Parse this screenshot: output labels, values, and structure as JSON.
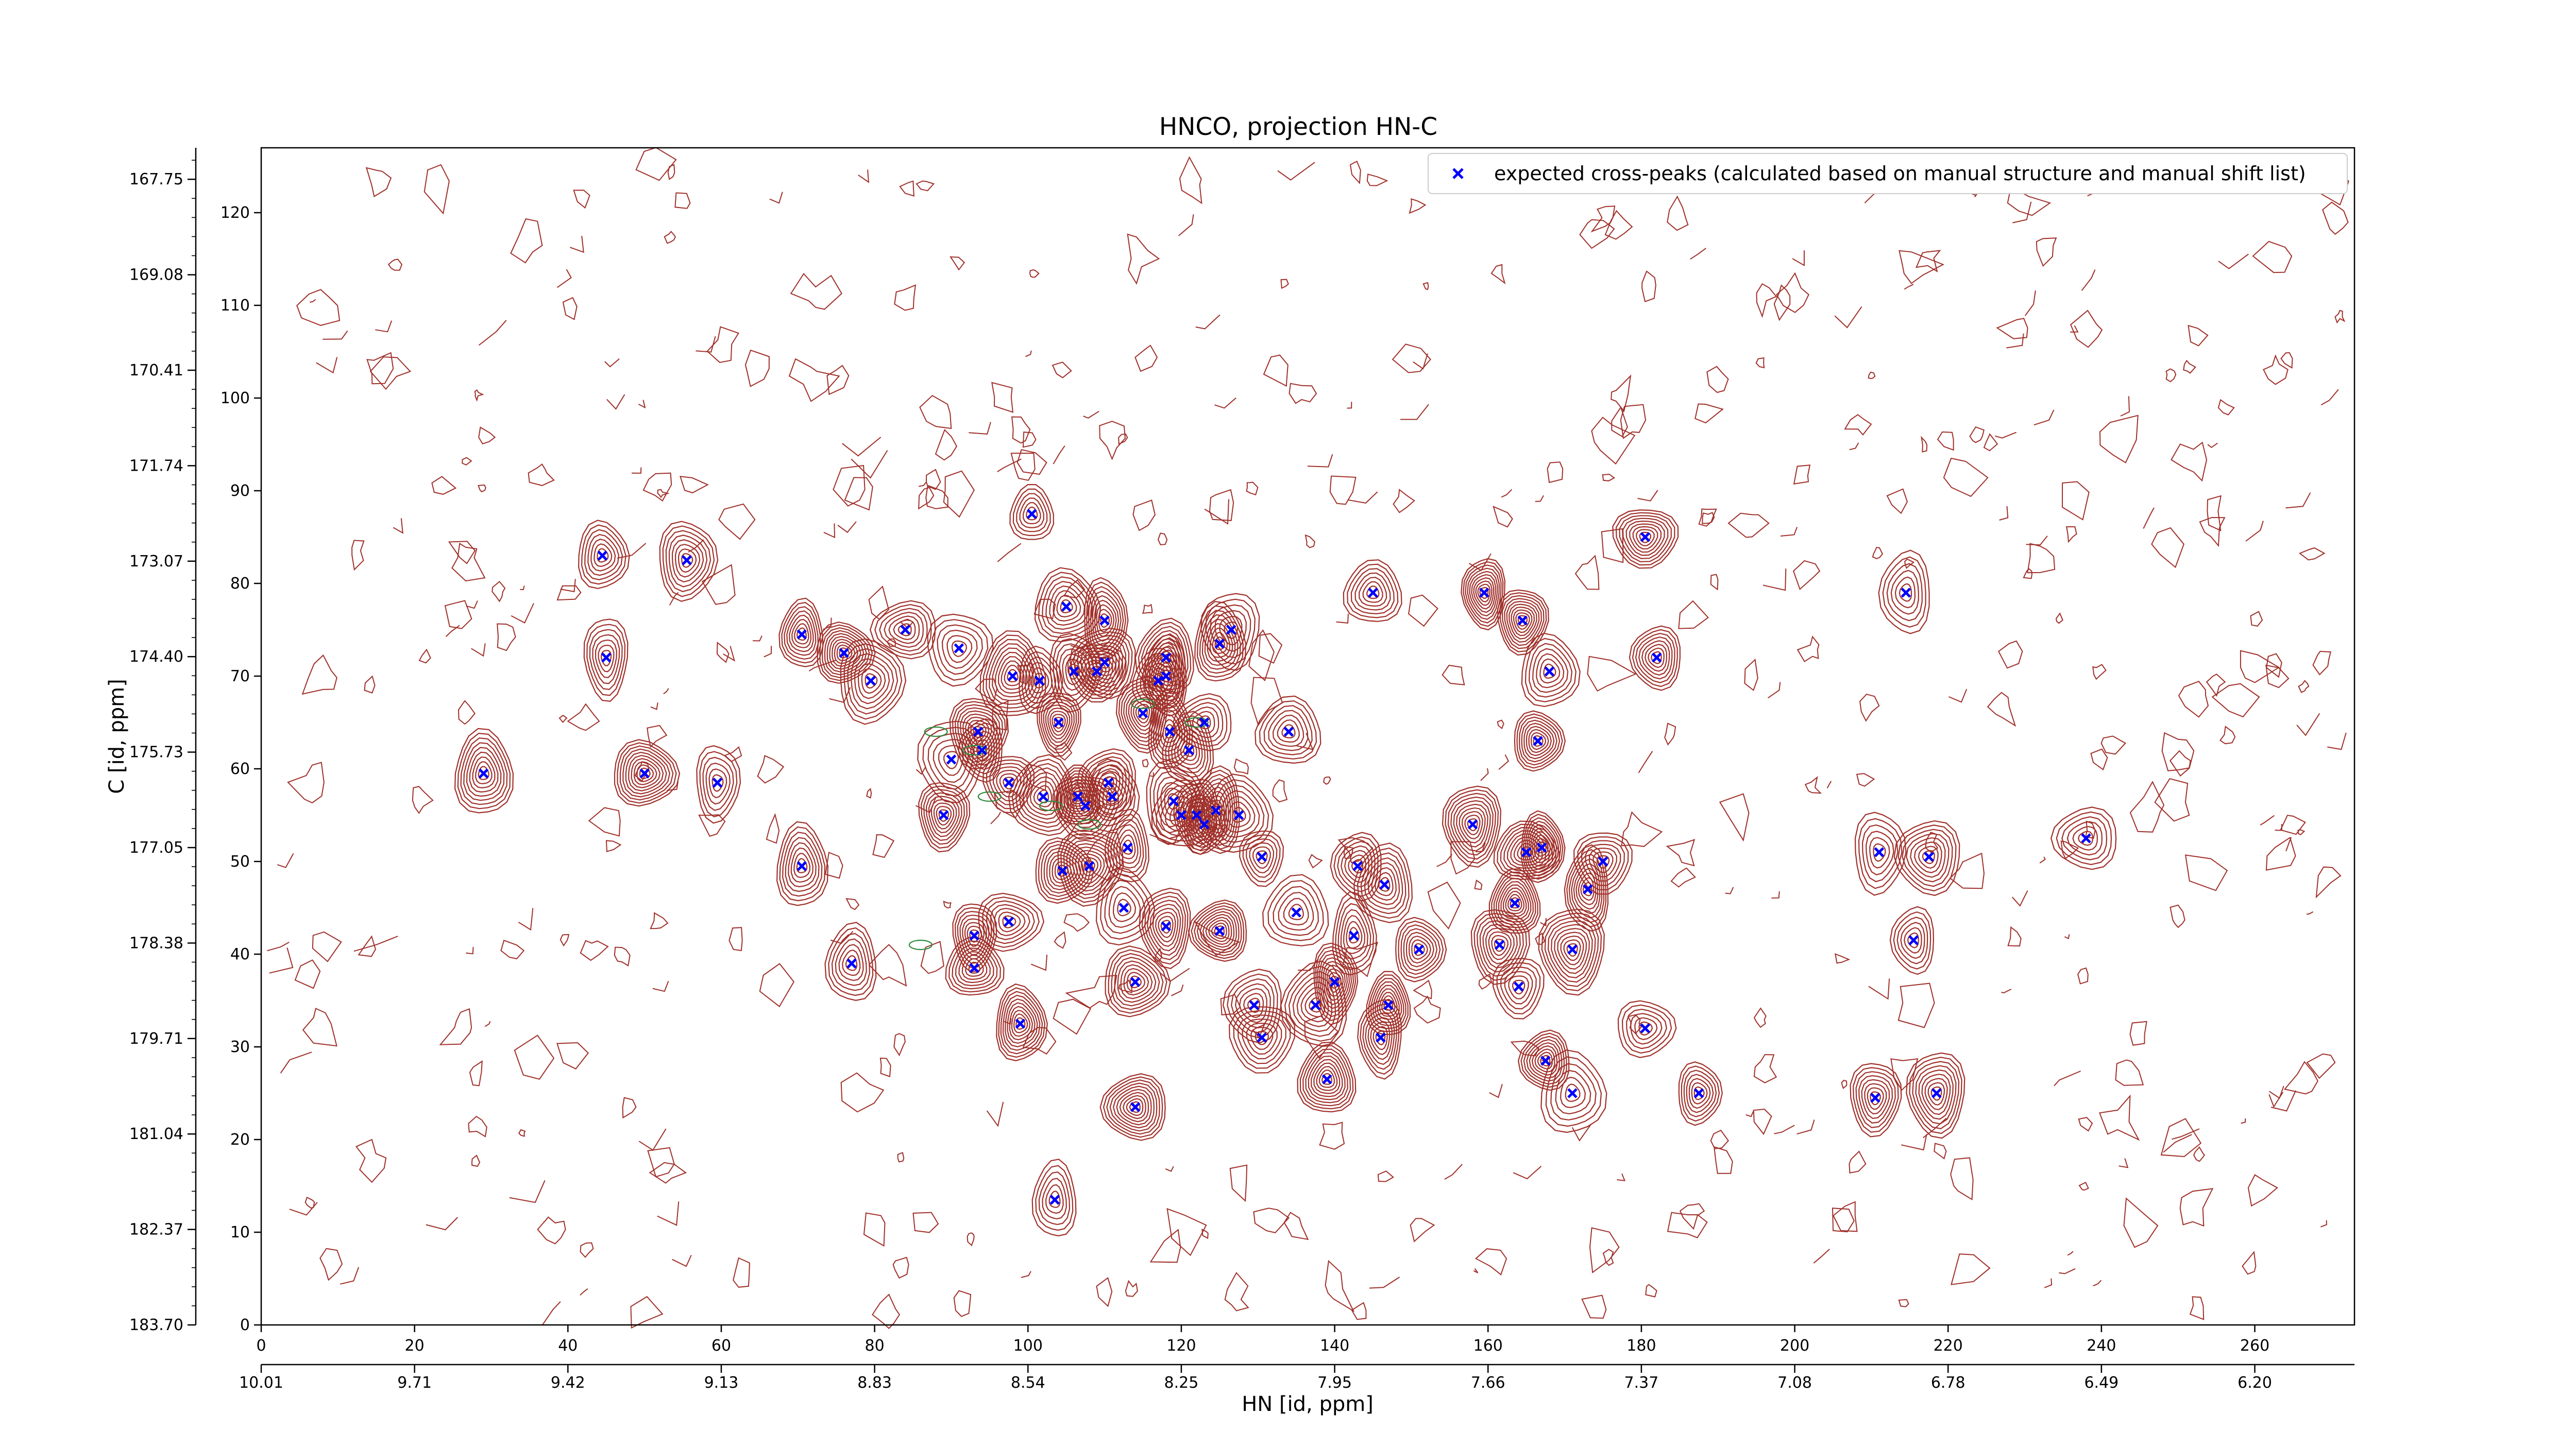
{
  "chart_data": {
    "type": "scatter",
    "title": "HNCO, projection HN-C",
    "xlabel": "HN [id, ppm]",
    "ylabel": "C [id, ppm]",
    "xlim": [
      0,
      273
    ],
    "ylim": [
      0,
      127
    ],
    "x_ticks": [
      0,
      20,
      40,
      60,
      80,
      100,
      120,
      140,
      160,
      180,
      200,
      220,
      240,
      260
    ],
    "y_ticks": [
      0,
      10,
      20,
      30,
      40,
      50,
      60,
      70,
      80,
      90,
      100,
      110,
      120
    ],
    "secondary_x_ticks": [
      {
        "pos": 0,
        "label": "10.01"
      },
      {
        "pos": 20,
        "label": "9.71"
      },
      {
        "pos": 40,
        "label": "9.42"
      },
      {
        "pos": 60,
        "label": "9.13"
      },
      {
        "pos": 80,
        "label": "8.83"
      },
      {
        "pos": 100,
        "label": "8.54"
      },
      {
        "pos": 120,
        "label": "8.25"
      },
      {
        "pos": 140,
        "label": "7.95"
      },
      {
        "pos": 160,
        "label": "7.66"
      },
      {
        "pos": 180,
        "label": "7.37"
      },
      {
        "pos": 200,
        "label": "7.08"
      },
      {
        "pos": 220,
        "label": "6.78"
      },
      {
        "pos": 240,
        "label": "6.49"
      },
      {
        "pos": 260,
        "label": "6.20"
      }
    ],
    "secondary_y_ticks": [
      {
        "pos": 0,
        "label": "183.70"
      },
      {
        "pos": 10.3,
        "label": "182.37"
      },
      {
        "pos": 20.6,
        "label": "181.04"
      },
      {
        "pos": 30.9,
        "label": "179.71"
      },
      {
        "pos": 41.2,
        "label": "178.38"
      },
      {
        "pos": 51.5,
        "label": "177.05"
      },
      {
        "pos": 61.8,
        "label": "175.73"
      },
      {
        "pos": 72.1,
        "label": "174.40"
      },
      {
        "pos": 82.4,
        "label": "173.07"
      },
      {
        "pos": 92.7,
        "label": "171.74"
      },
      {
        "pos": 103,
        "label": "170.41"
      },
      {
        "pos": 113.3,
        "label": "169.08"
      },
      {
        "pos": 123.6,
        "label": "167.75"
      }
    ],
    "legend": {
      "location": "upper right",
      "label": "expected cross-peaks (calculated based on manual structure and manual shift list)"
    },
    "series": [
      {
        "name": "expected cross-peaks (calculated based on manual structure and manual shift list)",
        "color": "#0000ff",
        "marker": "x",
        "points": [
          [
            100.5,
            87.5
          ],
          [
            44.5,
            83
          ],
          [
            55.5,
            82.5
          ],
          [
            180.5,
            85
          ],
          [
            159.5,
            79
          ],
          [
            214.5,
            79
          ],
          [
            145,
            79
          ],
          [
            105,
            77.5
          ],
          [
            110,
            76
          ],
          [
            164.5,
            76
          ],
          [
            126.5,
            75
          ],
          [
            84,
            75
          ],
          [
            70.5,
            74.5
          ],
          [
            125,
            73.5
          ],
          [
            76,
            72.5
          ],
          [
            91,
            73
          ],
          [
            45,
            72
          ],
          [
            182,
            72
          ],
          [
            118,
            72
          ],
          [
            98,
            70
          ],
          [
            101.5,
            69.5
          ],
          [
            106,
            70.5
          ],
          [
            109,
            70.5
          ],
          [
            110,
            71.5
          ],
          [
            118,
            70
          ],
          [
            117,
            69.5
          ],
          [
            168,
            70.5
          ],
          [
            79.5,
            69.5
          ],
          [
            104,
            65
          ],
          [
            115,
            66
          ],
          [
            123,
            65
          ],
          [
            134,
            64
          ],
          [
            118.5,
            64
          ],
          [
            166.5,
            63
          ],
          [
            93.5,
            64
          ],
          [
            90,
            61
          ],
          [
            94,
            62
          ],
          [
            121,
            62
          ],
          [
            29,
            59.5
          ],
          [
            50,
            59.5
          ],
          [
            59.5,
            58.5
          ],
          [
            97.5,
            58.5
          ],
          [
            110.5,
            58.5
          ],
          [
            102,
            57
          ],
          [
            106.5,
            57
          ],
          [
            111,
            57
          ],
          [
            119,
            56.5
          ],
          [
            107.5,
            56
          ],
          [
            122,
            55
          ],
          [
            124.5,
            55.5
          ],
          [
            120,
            55
          ],
          [
            127.5,
            55
          ],
          [
            123,
            54
          ],
          [
            89,
            55
          ],
          [
            158,
            54
          ],
          [
            238,
            52.5
          ],
          [
            113,
            51.5
          ],
          [
            70.5,
            49.5
          ],
          [
            104.5,
            49
          ],
          [
            108,
            49.5
          ],
          [
            130.5,
            50.5
          ],
          [
            143,
            49.5
          ],
          [
            146.5,
            47.5
          ],
          [
            165,
            51
          ],
          [
            167,
            51.5
          ],
          [
            211,
            51
          ],
          [
            175,
            50
          ],
          [
            217.5,
            50.5
          ],
          [
            173,
            47
          ],
          [
            163.5,
            45.5
          ],
          [
            112.5,
            45
          ],
          [
            97.5,
            43.5
          ],
          [
            93,
            42
          ],
          [
            118,
            43
          ],
          [
            125,
            42.5
          ],
          [
            135,
            44.5
          ],
          [
            142.5,
            42
          ],
          [
            151,
            40.5
          ],
          [
            161.5,
            41
          ],
          [
            171,
            40.5
          ],
          [
            215.5,
            41.5
          ],
          [
            77,
            39
          ],
          [
            93,
            38.5
          ],
          [
            114,
            37
          ],
          [
            140,
            37
          ],
          [
            164,
            36.5
          ],
          [
            129.5,
            34.5
          ],
          [
            137.5,
            34.5
          ],
          [
            147,
            34.5
          ],
          [
            99,
            32.5
          ],
          [
            180.5,
            32
          ],
          [
            130.5,
            31
          ],
          [
            146,
            31
          ],
          [
            167.5,
            28.5
          ],
          [
            139,
            26.5
          ],
          [
            171,
            25
          ],
          [
            187.5,
            25
          ],
          [
            210.5,
            24.5
          ],
          [
            218.5,
            25
          ],
          [
            114,
            23.5
          ],
          [
            103.5,
            13.5
          ]
        ]
      }
    ],
    "contour_colors": {
      "positive": "#a0302a",
      "negative": "#2e8b3e"
    },
    "grid": false
  }
}
